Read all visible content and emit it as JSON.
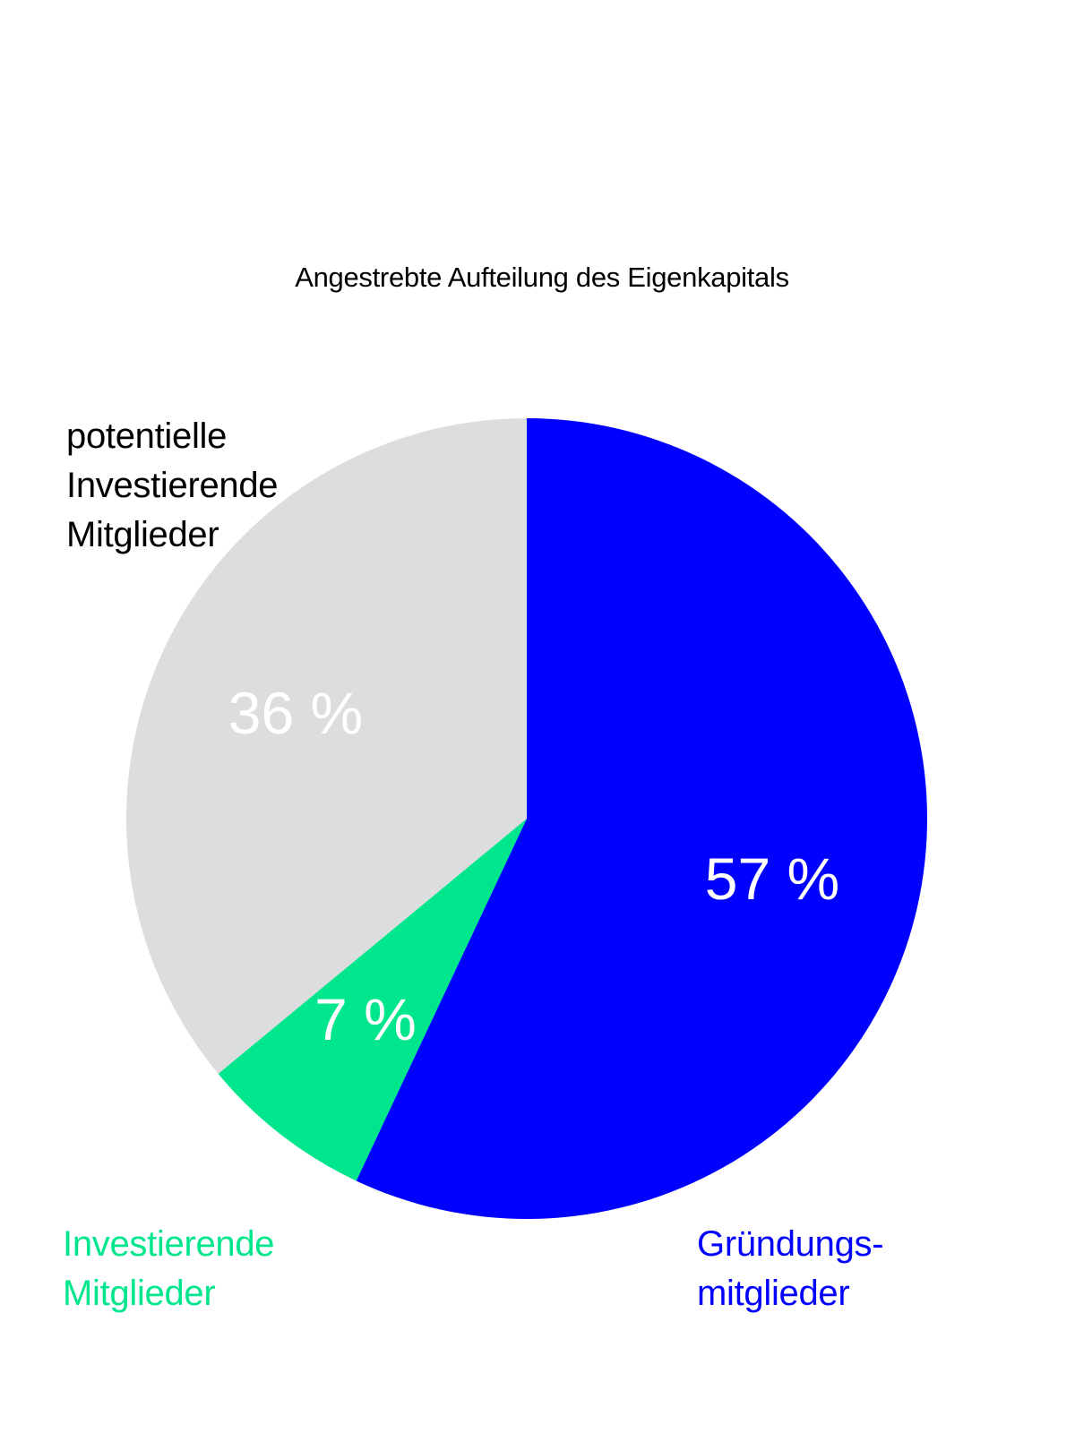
{
  "chart_data": {
    "type": "pie",
    "title": "Angestrebte Aufteilung des Eigenkapitals",
    "slices": [
      {
        "label_lines": [
          "Gründungs-",
          "mitglieder"
        ],
        "value": 57,
        "value_label": "57 %",
        "color": "#0000ff"
      },
      {
        "label_lines": [
          "Investierende",
          "Mitglieder"
        ],
        "value": 7,
        "value_label": "7 %",
        "color": "#00e68c"
      },
      {
        "label_lines": [
          "potentielle",
          "Investierende",
          "Mitglieder"
        ],
        "value": 36,
        "value_label": "36 %",
        "color": "#dcdddf"
      }
    ],
    "value_label_color": "#ffffff",
    "start": "12 o'clock",
    "direction": "clockwise"
  }
}
